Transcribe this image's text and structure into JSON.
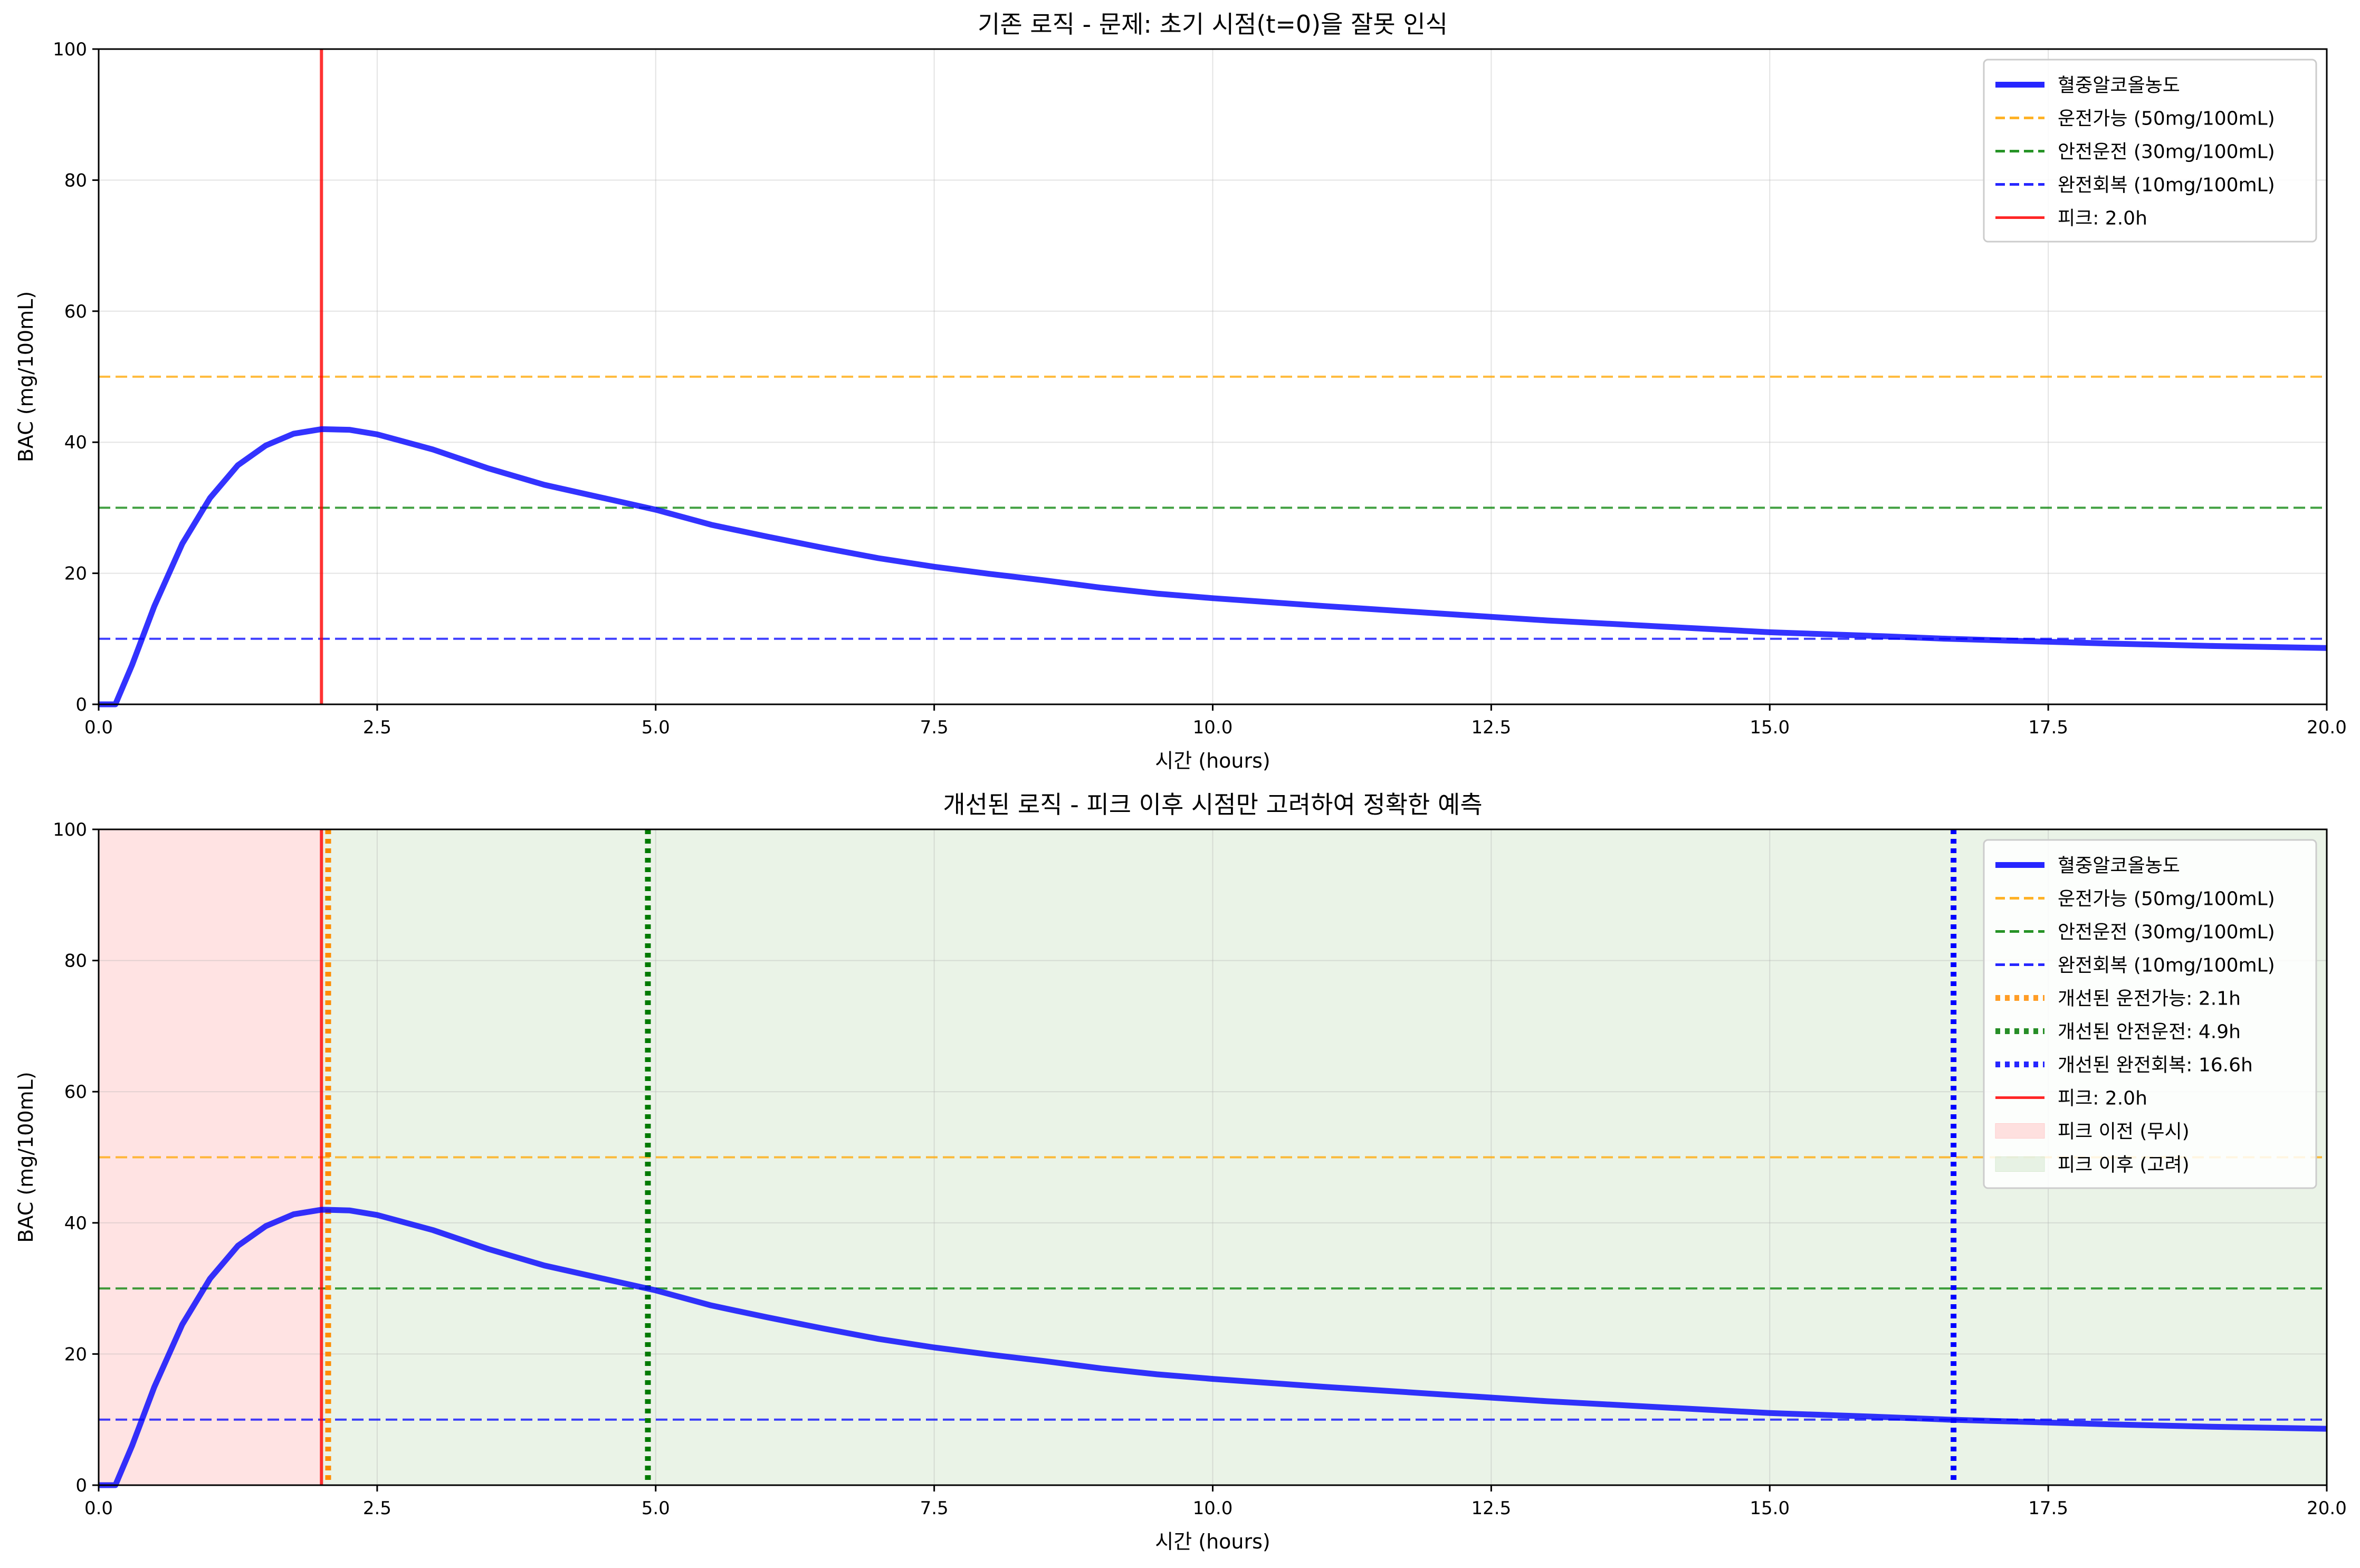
{
  "chart_data": [
    {
      "type": "line",
      "title": "기존 로직 - 문제: 초기 시점(t=0)을 잘못 인식",
      "xlabel": "시간 (hours)",
      "ylabel": "BAC (mg/100mL)",
      "xlim": [
        0,
        20
      ],
      "ylim": [
        0,
        100
      ],
      "xticks": [
        "0.0",
        "2.5",
        "5.0",
        "7.5",
        "10.0",
        "12.5",
        "15.0",
        "17.5",
        "20.0"
      ],
      "yticks": [
        "0",
        "20",
        "40",
        "60",
        "80",
        "100"
      ],
      "grid": true,
      "legend_position": "upper right",
      "series": [
        {
          "name": "혈중알코올농도",
          "color": "#0000ff",
          "style": "solid",
          "x": [
            0,
            0.15,
            0.3,
            0.5,
            0.75,
            1.0,
            1.25,
            1.5,
            1.75,
            2.0,
            2.25,
            2.5,
            3.0,
            3.5,
            4.0,
            4.5,
            5.0,
            5.5,
            6.0,
            6.5,
            7.0,
            7.5,
            8.0,
            8.5,
            9.0,
            9.5,
            10.0,
            11.0,
            12.0,
            13.0,
            14.0,
            15.0,
            16.0,
            16.6,
            17.0,
            18.0,
            19.0,
            20.0
          ],
          "y": [
            0,
            0,
            6,
            15,
            24.5,
            31.5,
            36.5,
            39.5,
            41.3,
            42,
            41.9,
            41.2,
            38.9,
            36,
            33.5,
            31.6,
            29.7,
            27.4,
            25.6,
            23.9,
            22.3,
            21,
            19.9,
            18.9,
            17.8,
            16.9,
            16.2,
            15,
            13.9,
            12.8,
            11.9,
            11,
            10.4,
            10,
            9.8,
            9.3,
            8.9,
            8.6
          ]
        }
      ],
      "hlines": [
        {
          "name": "운전가능 (50mg/100mL)",
          "y": 50,
          "color": "#ffa500",
          "style": "dashed"
        },
        {
          "name": "안전운전 (30mg/100mL)",
          "y": 30,
          "color": "#008000",
          "style": "dashed"
        },
        {
          "name": "완전회복 (10mg/100mL)",
          "y": 10,
          "color": "#0000ff",
          "style": "dashed"
        }
      ],
      "vlines": [
        {
          "name": "피크: 2.0h",
          "x": 2.0,
          "color": "#ff0000",
          "style": "solid"
        }
      ],
      "legend": [
        {
          "label": "혈중알코올농도",
          "color": "#0000ff",
          "style": "solid-thick"
        },
        {
          "label": "운전가능 (50mg/100mL)",
          "color": "#ffa500",
          "style": "dashed"
        },
        {
          "label": "안전운전 (30mg/100mL)",
          "color": "#008000",
          "style": "dashed"
        },
        {
          "label": "완전회복 (10mg/100mL)",
          "color": "#0000ff",
          "style": "dashed"
        },
        {
          "label": "피크: 2.0h",
          "color": "#ff0000",
          "style": "solid"
        }
      ]
    },
    {
      "type": "line",
      "title": "개선된 로직 - 피크 이후 시점만 고려하여 정확한 예측",
      "xlabel": "시간 (hours)",
      "ylabel": "BAC (mg/100mL)",
      "xlim": [
        0,
        20
      ],
      "ylim": [
        0,
        100
      ],
      "xticks": [
        "0.0",
        "2.5",
        "5.0",
        "7.5",
        "10.0",
        "12.5",
        "15.0",
        "17.5",
        "20.0"
      ],
      "yticks": [
        "0",
        "20",
        "40",
        "60",
        "80",
        "100"
      ],
      "grid": true,
      "legend_position": "upper right",
      "series": [
        {
          "name": "혈중알코올농도",
          "color": "#0000ff",
          "style": "solid",
          "x": [
            0,
            0.15,
            0.3,
            0.5,
            0.75,
            1.0,
            1.25,
            1.5,
            1.75,
            2.0,
            2.25,
            2.5,
            3.0,
            3.5,
            4.0,
            4.5,
            5.0,
            5.5,
            6.0,
            6.5,
            7.0,
            7.5,
            8.0,
            8.5,
            9.0,
            9.5,
            10.0,
            11.0,
            12.0,
            13.0,
            14.0,
            15.0,
            16.0,
            16.6,
            17.0,
            18.0,
            19.0,
            20.0
          ],
          "y": [
            0,
            0,
            6,
            15,
            24.5,
            31.5,
            36.5,
            39.5,
            41.3,
            42,
            41.9,
            41.2,
            38.9,
            36,
            33.5,
            31.6,
            29.7,
            27.4,
            25.6,
            23.9,
            22.3,
            21,
            19.9,
            18.9,
            17.8,
            16.9,
            16.2,
            15,
            13.9,
            12.8,
            11.9,
            11,
            10.4,
            10,
            9.8,
            9.3,
            8.9,
            8.6
          ]
        }
      ],
      "regions": [
        {
          "name": "피크 이전 (무시)",
          "x_start": 0,
          "x_end": 2.0,
          "color": "#ffcccc"
        },
        {
          "name": "피크 이후 (고려)",
          "x_start": 2.0,
          "x_end": 20,
          "color": "#d9ead3"
        }
      ],
      "hlines": [
        {
          "name": "운전가능 (50mg/100mL)",
          "y": 50,
          "color": "#ffa500",
          "style": "dashed"
        },
        {
          "name": "안전운전 (30mg/100mL)",
          "y": 30,
          "color": "#008000",
          "style": "dashed"
        },
        {
          "name": "완전회복 (10mg/100mL)",
          "y": 10,
          "color": "#0000ff",
          "style": "dashed"
        }
      ],
      "vlines": [
        {
          "name": "개선된 운전가능: 2.1h",
          "x": 2.06,
          "color": "#ff8c00",
          "style": "dotted"
        },
        {
          "name": "개선된 안전운전: 4.9h",
          "x": 4.93,
          "color": "#007a00",
          "style": "dotted"
        },
        {
          "name": "개선된 완전회복: 16.6h",
          "x": 16.65,
          "color": "#0000ff",
          "style": "dotted"
        },
        {
          "name": "피크: 2.0h",
          "x": 2.0,
          "color": "#ff0000",
          "style": "solid"
        }
      ],
      "legend": [
        {
          "label": "혈중알코올농도",
          "color": "#0000ff",
          "style": "solid-thick"
        },
        {
          "label": "운전가능 (50mg/100mL)",
          "color": "#ffa500",
          "style": "dashed"
        },
        {
          "label": "안전운전 (30mg/100mL)",
          "color": "#008000",
          "style": "dashed"
        },
        {
          "label": "완전회복 (10mg/100mL)",
          "color": "#0000ff",
          "style": "dashed"
        },
        {
          "label": "개선된 운전가능: 2.1h",
          "color": "#ff8c00",
          "style": "dotted"
        },
        {
          "label": "개선된 안전운전: 4.9h",
          "color": "#007a00",
          "style": "dotted"
        },
        {
          "label": "개선된 완전회복: 16.6h",
          "color": "#0000ff",
          "style": "dotted"
        },
        {
          "label": "피크: 2.0h",
          "color": "#ff0000",
          "style": "solid"
        },
        {
          "label": "피크 이전 (무시)",
          "color": "#ffcccc",
          "style": "patch"
        },
        {
          "label": "피크 이후 (고려)",
          "color": "#d9ead3",
          "style": "patch"
        }
      ]
    }
  ]
}
